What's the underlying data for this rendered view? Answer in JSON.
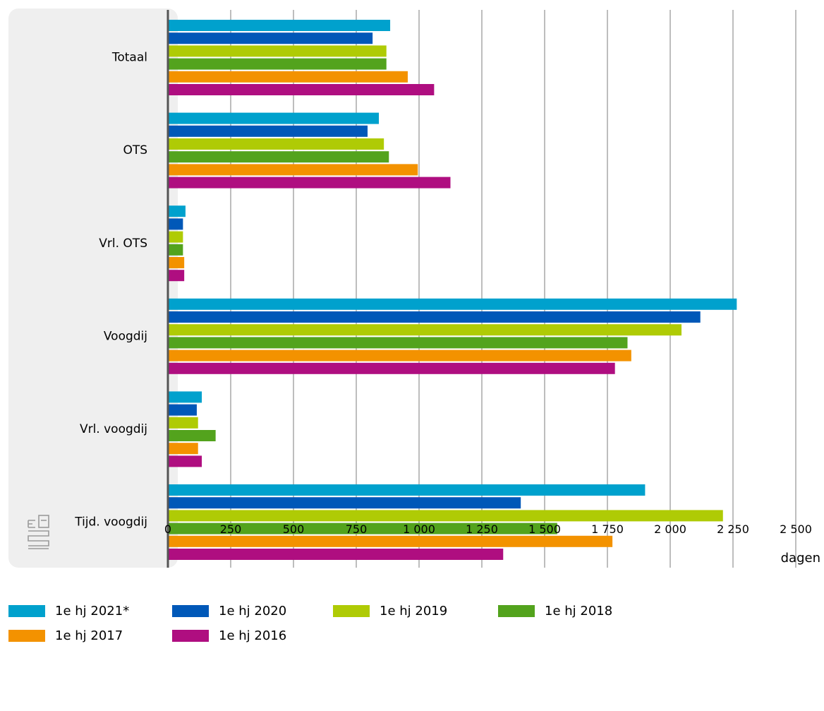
{
  "chart_data": {
    "type": "bar",
    "orientation": "horizontal",
    "categories": [
      "Totaal",
      "OTS",
      "Vrl. OTS",
      "Voogdij",
      "Vrl. voogdij",
      "Tijd. voogdij"
    ],
    "series": [
      {
        "name": "1e hj 2021*",
        "color": "#00a1cd",
        "values": [
          885,
          840,
          70,
          2265,
          135,
          1900
        ]
      },
      {
        "name": "1e hj 2020",
        "color": "#0058b8",
        "values": [
          815,
          795,
          60,
          2120,
          115,
          1405
        ]
      },
      {
        "name": "1e hj 2019",
        "color": "#afcb05",
        "values": [
          870,
          860,
          60,
          2045,
          120,
          2210
        ]
      },
      {
        "name": "1e hj 2018",
        "color": "#53a31d",
        "values": [
          870,
          880,
          60,
          1830,
          190,
          1550
        ]
      },
      {
        "name": "1e hj 2017",
        "color": "#f39200",
        "values": [
          955,
          995,
          65,
          1845,
          120,
          1770
        ]
      },
      {
        "name": "1e hj 2016",
        "color": "#af0e80",
        "values": [
          1060,
          1125,
          65,
          1780,
          135,
          1335
        ]
      }
    ],
    "x_ticks": [
      "0",
      "250",
      "500",
      "750",
      "1 000",
      "1 250",
      "1 500",
      "1 750",
      "2 000",
      "2 250",
      "2 500"
    ],
    "xlim": [
      0,
      2500
    ],
    "xlabel": "dagen",
    "grid": true,
    "legend_position": "bottom"
  },
  "style": {
    "panel_color": "#efefef",
    "grid_color": "#9a9a9a",
    "axis_color": "#555555",
    "logo_color": "#9a9a9a"
  },
  "logo_icon": "cbs-logo-icon"
}
